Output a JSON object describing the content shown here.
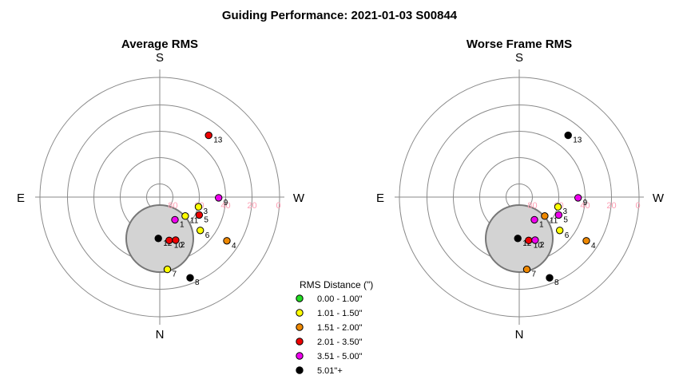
{
  "title": "Guiding Performance: 2021-01-03 S00844",
  "colors": {
    "bin1": "#22dd22",
    "bin2": "#ffff00",
    "bin3": "#ee8800",
    "bin4": "#ee0000",
    "bin5": "#ee00ee",
    "bin6": "#000000",
    "grid": "#8a8a8a",
    "obstruction_fill": "#d3d3d3",
    "obstruction_edge": "#777777",
    "alt_label": "#ff9fb4"
  },
  "legend": {
    "title": "RMS Distance (\")",
    "items": [
      {
        "label": "0.00 - 1.00\"",
        "color": "#22dd22"
      },
      {
        "label": "1.01 - 1.50\"",
        "color": "#ffff00"
      },
      {
        "label": "1.51 - 2.00\"",
        "color": "#ee8800"
      },
      {
        "label": "2.01 - 3.50\"",
        "color": "#ee0000"
      },
      {
        "label": "3.51 - 5.00\"",
        "color": "#ee00ee"
      },
      {
        "label": "5.01\"+",
        "color": "#000000"
      }
    ]
  },
  "chart_data": [
    {
      "type": "scatter",
      "subtitle": "Average RMS",
      "projection": "polar",
      "directions": {
        "top": "S",
        "bottom": "N",
        "left": "E",
        "right": "W"
      },
      "altitude_ticks": [
        80,
        60,
        40,
        20,
        0
      ],
      "altitude_rings": [
        80,
        60,
        40,
        20
      ],
      "points": [
        {
          "label": "8",
          "az": 200.6,
          "alt": 24.5,
          "bin": 6
        },
        {
          "label": "7",
          "az": 186.0,
          "alt": 34.8,
          "bin": 2
        },
        {
          "label": "4",
          "az": 236.9,
          "alt": 29.2,
          "bin": 3
        },
        {
          "label": "12",
          "az": 178.0,
          "alt": 58.6,
          "bin": 6
        },
        {
          "label": "10",
          "az": 192.3,
          "alt": 56.3,
          "bin": 4
        },
        {
          "label": "2",
          "az": 200.3,
          "alt": 55.2,
          "bin": 4
        },
        {
          "label": "6",
          "az": 230.5,
          "alt": 50.2,
          "bin": 2
        },
        {
          "label": "1",
          "az": 213.8,
          "alt": 69.3,
          "bin": 5
        },
        {
          "label": "11",
          "az": 233.4,
          "alt": 65.9,
          "bin": 2
        },
        {
          "label": "5",
          "az": 245.6,
          "alt": 57.1,
          "bin": 4
        },
        {
          "label": "3",
          "az": 255.9,
          "alt": 59.7,
          "bin": 2
        },
        {
          "label": "9",
          "az": 269.3,
          "alt": 45.3,
          "bin": 5
        },
        {
          "label": "13",
          "az": 321.7,
          "alt": 30.2,
          "bin": 4
        }
      ]
    },
    {
      "type": "scatter",
      "subtitle": "Worse Frame RMS",
      "projection": "polar",
      "directions": {
        "top": "S",
        "bottom": "N",
        "left": "E",
        "right": "W"
      },
      "altitude_ticks": [
        80,
        60,
        40,
        20,
        0
      ],
      "altitude_rings": [
        80,
        60,
        40,
        20
      ],
      "points": [
        {
          "label": "8",
          "az": 200.6,
          "alt": 24.5,
          "bin": 6
        },
        {
          "label": "7",
          "az": 186.0,
          "alt": 34.8,
          "bin": 3
        },
        {
          "label": "4",
          "az": 236.9,
          "alt": 29.2,
          "bin": 3
        },
        {
          "label": "12",
          "az": 178.0,
          "alt": 58.6,
          "bin": 6
        },
        {
          "label": "10",
          "az": 192.3,
          "alt": 56.3,
          "bin": 4
        },
        {
          "label": "2",
          "az": 200.3,
          "alt": 55.2,
          "bin": 5
        },
        {
          "label": "6",
          "az": 230.5,
          "alt": 50.2,
          "bin": 2
        },
        {
          "label": "1",
          "az": 213.8,
          "alt": 69.3,
          "bin": 5
        },
        {
          "label": "11",
          "az": 233.4,
          "alt": 65.9,
          "bin": 3
        },
        {
          "label": "5",
          "az": 245.6,
          "alt": 57.1,
          "bin": 5
        },
        {
          "label": "3",
          "az": 255.9,
          "alt": 59.7,
          "bin": 2
        },
        {
          "label": "9",
          "az": 269.3,
          "alt": 45.3,
          "bin": 5
        },
        {
          "label": "13",
          "az": 321.7,
          "alt": 30.2,
          "bin": 6
        }
      ]
    }
  ]
}
